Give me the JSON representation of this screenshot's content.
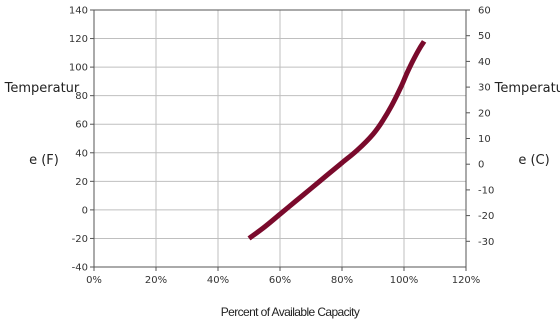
{
  "chart_data": {
    "type": "line",
    "title": "",
    "xlabel": "Percent of Available Capacity",
    "ylabel_left_lines": [
      "Temperatur",
      "e (F)"
    ],
    "ylabel_right_lines": [
      "Temperatur",
      "e (C)"
    ],
    "xlim": [
      0,
      120
    ],
    "ylim_left": [
      -40,
      140
    ],
    "ylim_right": [
      -40,
      60
    ],
    "x_ticks": [
      0,
      20,
      40,
      60,
      80,
      100,
      120
    ],
    "x_tick_labels": [
      "0%",
      "20%",
      "40%",
      "60%",
      "80%",
      "100%",
      "120%"
    ],
    "y_left_ticks": [
      -40,
      -20,
      0,
      20,
      40,
      60,
      80,
      100,
      120,
      140
    ],
    "y_left_tick_labels": [
      "-40",
      "-20",
      "0",
      "20",
      "40",
      "60",
      "80",
      "100",
      "120",
      "140"
    ],
    "y_right_ticks": [
      -30,
      -20,
      -10,
      0,
      10,
      20,
      30,
      40,
      50,
      60
    ],
    "y_right_tick_labels": [
      "-30",
      "-20",
      "-10",
      "0",
      "10",
      "20",
      "30",
      "40",
      "50",
      "60"
    ],
    "grid": true,
    "series": [
      {
        "color": "#7a0a2c",
        "x": [
          50,
          55,
          60,
          65,
          70,
          75,
          80,
          85,
          90,
          93,
          96,
          99,
          101,
          103,
          105,
          106.5
        ],
        "y": [
          -20,
          -12,
          -3,
          6,
          15,
          24,
          33,
          42,
          53,
          62,
          73,
          86,
          96,
          105,
          113,
          118
        ]
      }
    ]
  }
}
